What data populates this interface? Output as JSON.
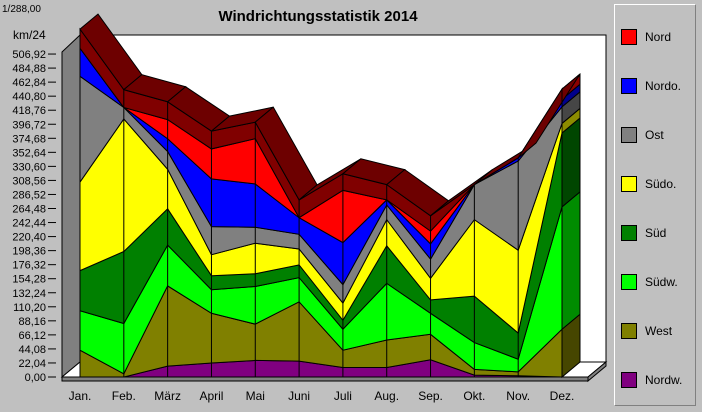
{
  "chart_data": {
    "type": "area",
    "stacked": true,
    "three_d": true,
    "title": "Windrichtungsstatistik 2014",
    "ylabel": "km/24",
    "corner_label": "1/288,00",
    "categories": [
      "Jan.",
      "Feb.",
      "März",
      "April",
      "Mai",
      "Juni",
      "Juli",
      "Aug.",
      "Sep.",
      "Okt.",
      "Nov.",
      "Dez."
    ],
    "ylim": [
      0,
      528.96
    ],
    "yticks": [
      "0,00",
      "22,04",
      "44,08",
      "66,12",
      "88,16",
      "110,20",
      "132,24",
      "154,28",
      "176,32",
      "198,36",
      "220,40",
      "242,44",
      "264,48",
      "286,52",
      "308,56",
      "330,60",
      "352,64",
      "374,68",
      "396,72",
      "418,76",
      "440,80",
      "462,84",
      "484,88",
      "506,92"
    ],
    "grid": false,
    "legend_position": "right",
    "series": [
      {
        "name": "Nordw.",
        "color": "#800080",
        "values": [
          0,
          0,
          17,
          22,
          26,
          25,
          15,
          15,
          27,
          3,
          2,
          0
        ]
      },
      {
        "name": "West",
        "color": "#808000",
        "values": [
          42,
          5,
          126,
          78,
          57,
          93,
          27,
          43,
          40,
          9,
          6,
          75
        ]
      },
      {
        "name": "Südw.",
        "color": "#00ff00",
        "values": [
          62,
          79,
          64,
          37,
          59,
          38,
          33,
          89,
          33,
          42,
          20,
          192
        ]
      },
      {
        "name": "Süd",
        "color": "#008000",
        "values": [
          63,
          113,
          57,
          22,
          20,
          20,
          14,
          59,
          21,
          73,
          41,
          116
        ]
      },
      {
        "name": "Südo.",
        "color": "#ffff00",
        "values": [
          139,
          208,
          62,
          33,
          48,
          25,
          27,
          41,
          34,
          120,
          130,
          15
        ]
      },
      {
        "name": "Ost",
        "color": "#808080",
        "values": [
          166,
          18,
          28,
          44,
          25,
          23,
          29,
          23,
          30,
          55,
          140,
          26
        ]
      },
      {
        "name": "Nordo.",
        "color": "#0000ff",
        "values": [
          44,
          0,
          20,
          75,
          68,
          26,
          66,
          8,
          24,
          0,
          5,
          12
        ]
      },
      {
        "name": "Nord",
        "color": "#ff0000",
        "values": [
          0,
          0,
          30,
          47,
          71,
          0,
          82,
          0,
          20,
          0,
          0,
          14
        ]
      },
      {
        "name": "",
        "color": "#800000",
        "values": [
          30,
          28,
          28,
          28,
          26,
          28,
          26,
          24,
          24,
          0,
          0,
          2
        ]
      }
    ]
  }
}
